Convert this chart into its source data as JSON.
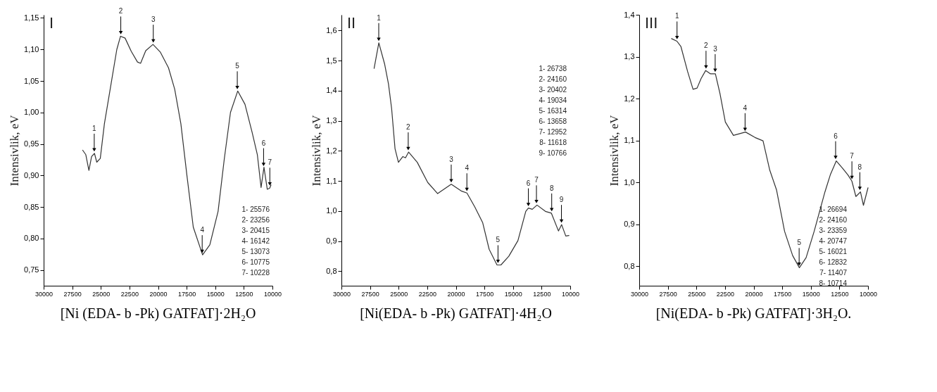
{
  "chart_data": [
    {
      "type": "line",
      "title": "[Ni (EDA- b -Pk) GATFAT]·2H₂O",
      "ylabel": "Intensivlik, eV",
      "xlim": [
        30000,
        10000
      ],
      "xticks": [
        30000,
        27500,
        25000,
        22500,
        20000,
        17500,
        15000,
        12500,
        10000
      ],
      "ylim": [
        0.725,
        1.155
      ],
      "yticks": [
        {
          "value": 0.75,
          "label": "0,75"
        },
        {
          "value": 0.8,
          "label": "0,80"
        },
        {
          "value": 0.85,
          "label": "0,85"
        },
        {
          "value": 0.9,
          "label": "0,90"
        },
        {
          "value": 0.95,
          "label": "0,95"
        },
        {
          "value": 1.0,
          "label": "1,00"
        },
        {
          "value": 1.05,
          "label": "1,05"
        },
        {
          "value": 1.1,
          "label": "1,10"
        },
        {
          "value": 1.15,
          "label": "1,15"
        }
      ],
      "series": [
        {
          "color": "#333333",
          "x": [
            26585,
            26314,
            26043,
            25808,
            25556,
            25357,
            25050,
            24689,
            24147,
            23604,
            23279,
            22882,
            22340,
            21798,
            21527,
            21075,
            20443,
            19810,
            19088,
            18546,
            18004,
            17462,
            16920,
            16107,
            15474,
            14752,
            14210,
            13668,
            13036,
            12403,
            11771,
            11319,
            10994,
            10741,
            10452,
            10235,
            10127
          ],
          "values": [
            0.94,
            0.933,
            0.908,
            0.93,
            0.935,
            0.921,
            0.927,
            0.982,
            1.041,
            1.1,
            1.121,
            1.118,
            1.097,
            1.08,
            1.078,
            1.098,
            1.108,
            1.096,
            1.071,
            1.037,
            0.982,
            0.898,
            0.818,
            0.774,
            0.79,
            0.843,
            0.926,
            1.0,
            1.034,
            1.013,
            0.968,
            0.933,
            0.881,
            0.913,
            0.878,
            0.88,
            0.885
          ]
        }
      ],
      "annotations": [
        "I",
        "1- 25576",
        "2- 23256",
        "3- 20415",
        "4- 16142",
        "5- 13073",
        "6- 10775",
        "7- 10228",
        {
          "text": "1",
          "x": 25576,
          "y": 0.935
        },
        {
          "text": "2",
          "x": 23256,
          "y": 1.121
        },
        {
          "text": "3",
          "x": 20415,
          "y": 1.108
        },
        {
          "text": "4",
          "x": 16142,
          "y": 0.774
        },
        {
          "text": "5",
          "x": 13073,
          "y": 1.034
        },
        {
          "text": "6",
          "x": 10775,
          "y": 0.912
        },
        {
          "text": "7",
          "x": 10228,
          "y": 0.881
        }
      ]
    },
    {
      "type": "line",
      "title": "[Ni(EDA- b -Pk) GATFAT]·4H₂O",
      "ylabel": "Intensivlik, eV",
      "xlim": [
        30000,
        10000
      ],
      "xticks": [
        30000,
        27500,
        25000,
        22500,
        20000,
        17500,
        15000,
        12500,
        10000
      ],
      "ylim": [
        0.752,
        1.652
      ],
      "yticks": [
        {
          "value": 0.8,
          "label": "0,8"
        },
        {
          "value": 0.9,
          "label": "0,9"
        },
        {
          "value": 1.0,
          "label": "1,0"
        },
        {
          "value": 1.1,
          "label": "1,1"
        },
        {
          "value": 1.2,
          "label": "1,2"
        },
        {
          "value": 1.3,
          "label": "1,3"
        },
        {
          "value": 1.4,
          "label": "1,4"
        },
        {
          "value": 1.5,
          "label": "1,5"
        },
        {
          "value": 1.6,
          "label": "1,6"
        }
      ],
      "series": [
        {
          "color": "#333333",
          "x": [
            27143,
            26731,
            26229,
            25886,
            25611,
            25314,
            25017,
            24629,
            24400,
            24126,
            23371,
            22457,
            21589,
            20400,
            19486,
            19029,
            18343,
            17657,
            17086,
            16400,
            16057,
            15371,
            14571,
            13886,
            13657,
            13314,
            12903,
            12171,
            11646,
            11029,
            10754,
            10389,
            10114
          ],
          "values": [
            1.474,
            1.559,
            1.489,
            1.422,
            1.34,
            1.207,
            1.162,
            1.181,
            1.177,
            1.196,
            1.162,
            1.095,
            1.058,
            1.089,
            1.066,
            1.06,
            1.014,
            0.962,
            0.873,
            0.821,
            0.821,
            0.85,
            0.902,
            0.999,
            1.01,
            1.006,
            1.02,
            0.999,
            0.993,
            0.934,
            0.955,
            0.917,
            0.919
          ]
        }
      ],
      "annotations": [
        "II",
        "1- 26738",
        "2- 24160",
        "3- 20402",
        "4- 19034",
        "5- 16314",
        "6- 13658",
        "7- 12952",
        "8- 11618",
        "9- 10766",
        {
          "text": "1",
          "x": 26738,
          "y": 1.559
        },
        {
          "text": "2",
          "x": 24160,
          "y": 1.196
        },
        {
          "text": "3",
          "x": 20402,
          "y": 1.089
        },
        {
          "text": "4",
          "x": 19034,
          "y": 1.06
        },
        {
          "text": "5",
          "x": 16314,
          "y": 0.821
        },
        {
          "text": "6",
          "x": 13658,
          "y": 1.01
        },
        {
          "text": "7",
          "x": 12952,
          "y": 1.02
        },
        {
          "text": "8",
          "x": 11618,
          "y": 0.993
        },
        {
          "text": "9",
          "x": 10766,
          "y": 0.955
        }
      ]
    },
    {
      "type": "line",
      "title": "[Ni(EDA- b -Pk) GATFAT]·3H₂O.",
      "ylabel": "Intensivlik, eV",
      "xlim": [
        30000,
        10000
      ],
      "xticks": [
        30000,
        27500,
        25000,
        22500,
        20000,
        17500,
        15000,
        12500,
        10000
      ],
      "ylim": [
        0.753,
        1.4
      ],
      "yticks": [
        {
          "value": 0.8,
          "label": "0,8"
        },
        {
          "value": 0.9,
          "label": "0,9"
        },
        {
          "value": 1.0,
          "label": "1,0"
        },
        {
          "value": 1.1,
          "label": "1,1"
        },
        {
          "value": 1.2,
          "label": "1,2"
        },
        {
          "value": 1.3,
          "label": "1,3"
        },
        {
          "value": 1.4,
          "label": "1,4"
        }
      ],
      "series": [
        {
          "color": "#333333",
          "x": [
            27176,
            26706,
            26353,
            25765,
            25294,
            24941,
            24588,
            24188,
            23765,
            23341,
            22941,
            22471,
            21765,
            20706,
            19882,
            19176,
            18588,
            17999,
            17294,
            16588,
            16000,
            15412,
            14706,
            13765,
            13294,
            12776,
            12235,
            11765,
            11412,
            11059,
            10659,
            10400,
            10000
          ],
          "values": [
            1.343,
            1.337,
            1.324,
            1.264,
            1.222,
            1.225,
            1.248,
            1.267,
            1.259,
            1.259,
            1.212,
            1.144,
            1.112,
            1.12,
            1.107,
            1.099,
            1.029,
            0.982,
            0.883,
            0.825,
            0.796,
            0.82,
            0.883,
            0.977,
            1.018,
            1.051,
            1.034,
            1.018,
            1.003,
            0.966,
            0.977,
            0.945,
            0.987
          ]
        }
      ],
      "annotations": [
        "III",
        "1- 26694",
        "2- 24160",
        "3- 23359",
        "4- 20747",
        "5- 16021",
        "6- 12832",
        "7- 11407",
        "8- 10714",
        {
          "text": "1",
          "x": 26694,
          "y": 1.337
        },
        {
          "text": "2",
          "x": 24160,
          "y": 1.267
        },
        {
          "text": "3",
          "x": 23359,
          "y": 1.259
        },
        {
          "text": "4",
          "x": 20747,
          "y": 1.118
        },
        {
          "text": "5",
          "x": 16021,
          "y": 0.796
        },
        {
          "text": "6",
          "x": 12832,
          "y": 1.051
        },
        {
          "text": "7",
          "x": 11407,
          "y": 1.003
        },
        {
          "text": "8",
          "x": 10714,
          "y": 0.977
        }
      ]
    }
  ]
}
